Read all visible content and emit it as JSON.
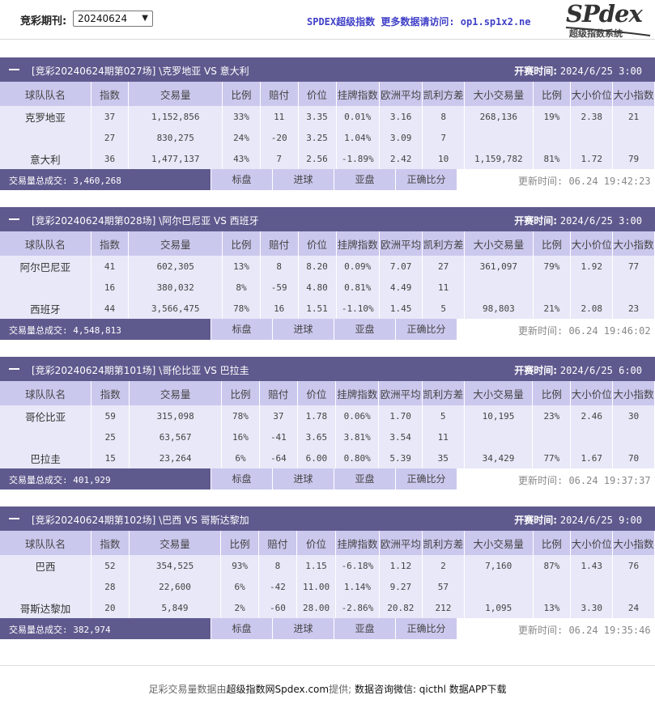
{
  "header": {
    "period_label": "竞彩期刊:",
    "period_value": "20240624",
    "banner": "SPDEX超级指数 更多数据请访问: op1.sp1x2.ne",
    "logo_text": "SPdex",
    "logo_sub": "超级指数系统"
  },
  "columns": [
    "球队队名",
    "指数",
    "交易量",
    "比例",
    "赔付",
    "价位",
    "挂牌指数",
    "欧洲平均",
    "凯利方差",
    "大小交易量",
    "比例",
    "大小价位",
    "大小指数"
  ],
  "buttons": [
    "标盘",
    "进球",
    "亚盘",
    "正确比分"
  ],
  "matches": [
    {
      "title": "[竞彩20240624期第027场] \\克罗地亚 VS 意大利",
      "start_label": "开赛时间:",
      "start_time": "2024/6/25 3:00",
      "rows": [
        {
          "team": "克罗地亚",
          "idx": "37",
          "vol": "1,152,856",
          "ratio": "33%",
          "pay": "11",
          "price": "3.35",
          "listed": "0.01%",
          "euro": "3.16",
          "kelly": "8",
          "ou_vol": "268,136",
          "ou_ratio": "19%",
          "ou_price": "2.38",
          "ou_idx": "21"
        },
        {
          "team": "",
          "idx": "27",
          "vol": "830,275",
          "ratio": "24%",
          "pay": "-20",
          "price": "3.25",
          "listed": "1.04%",
          "euro": "3.09",
          "kelly": "7",
          "ou_vol": "",
          "ou_ratio": "",
          "ou_price": "",
          "ou_idx": ""
        },
        {
          "team": "意大利",
          "idx": "36",
          "vol": "1,477,137",
          "ratio": "43%",
          "pay": "7",
          "price": "2.56",
          "listed": "-1.89%",
          "euro": "2.42",
          "kelly": "10",
          "ou_vol": "1,159,782",
          "ou_ratio": "81%",
          "ou_price": "1.72",
          "ou_idx": "79"
        }
      ],
      "total": "交易量总成交: 3,460,268",
      "updated": "更新时间: 06.24 19:42:23"
    },
    {
      "title": "[竞彩20240624期第028场] \\阿尔巴尼亚 VS 西班牙",
      "start_label": "开赛时间:",
      "start_time": "2024/6/25 3:00",
      "rows": [
        {
          "team": "阿尔巴尼亚",
          "idx": "41",
          "vol": "602,305",
          "ratio": "13%",
          "pay": "8",
          "price": "8.20",
          "listed": "0.09%",
          "euro": "7.07",
          "kelly": "27",
          "ou_vol": "361,097",
          "ou_ratio": "79%",
          "ou_price": "1.92",
          "ou_idx": "77"
        },
        {
          "team": "",
          "idx": "16",
          "vol": "380,032",
          "ratio": "8%",
          "pay": "-59",
          "price": "4.80",
          "listed": "0.81%",
          "euro": "4.49",
          "kelly": "11",
          "ou_vol": "",
          "ou_ratio": "",
          "ou_price": "",
          "ou_idx": ""
        },
        {
          "team": "西班牙",
          "idx": "44",
          "vol": "3,566,475",
          "ratio": "78%",
          "pay": "16",
          "price": "1.51",
          "listed": "-1.10%",
          "euro": "1.45",
          "kelly": "5",
          "ou_vol": "98,803",
          "ou_ratio": "21%",
          "ou_price": "2.08",
          "ou_idx": "23"
        }
      ],
      "total": "交易量总成交: 4,548,813",
      "updated": "更新时间: 06.24 19:46:02"
    },
    {
      "title": "[竞彩20240624期第101场] \\哥伦比亚 VS 巴拉圭",
      "start_label": "开赛时间:",
      "start_time": "2024/6/25 6:00",
      "rows": [
        {
          "team": "哥伦比亚",
          "idx": "59",
          "vol": "315,098",
          "ratio": "78%",
          "pay": "37",
          "price": "1.78",
          "listed": "0.06%",
          "euro": "1.70",
          "kelly": "5",
          "ou_vol": "10,195",
          "ou_ratio": "23%",
          "ou_price": "2.46",
          "ou_idx": "30"
        },
        {
          "team": "",
          "idx": "25",
          "vol": "63,567",
          "ratio": "16%",
          "pay": "-41",
          "price": "3.65",
          "listed": "3.81%",
          "euro": "3.54",
          "kelly": "11",
          "ou_vol": "",
          "ou_ratio": "",
          "ou_price": "",
          "ou_idx": ""
        },
        {
          "team": "巴拉圭",
          "idx": "15",
          "vol": "23,264",
          "ratio": "6%",
          "pay": "-64",
          "price": "6.00",
          "listed": "0.80%",
          "euro": "5.39",
          "kelly": "35",
          "ou_vol": "34,429",
          "ou_ratio": "77%",
          "ou_price": "1.67",
          "ou_idx": "70"
        }
      ],
      "total": "交易量总成交: 401,929",
      "updated": "更新时间: 06.24 19:37:37"
    },
    {
      "title": "[竞彩20240624期第102场] \\巴西 VS 哥斯达黎加",
      "start_label": "开赛时间:",
      "start_time": "2024/6/25 9:00",
      "rows": [
        {
          "team": "巴西",
          "idx": "52",
          "vol": "354,525",
          "ratio": "93%",
          "pay": "8",
          "price": "1.15",
          "listed": "-6.18%",
          "euro": "1.12",
          "kelly": "2",
          "ou_vol": "7,160",
          "ou_ratio": "87%",
          "ou_price": "1.43",
          "ou_idx": "76"
        },
        {
          "team": "",
          "idx": "28",
          "vol": "22,600",
          "ratio": "6%",
          "pay": "-42",
          "price": "11.00",
          "listed": "1.14%",
          "euro": "9.27",
          "kelly": "57",
          "ou_vol": "",
          "ou_ratio": "",
          "ou_price": "",
          "ou_idx": ""
        },
        {
          "team": "哥斯达黎加",
          "idx": "20",
          "vol": "5,849",
          "ratio": "2%",
          "pay": "-60",
          "price": "28.00",
          "listed": "-2.86%",
          "euro": "20.82",
          "kelly": "212",
          "ou_vol": "1,095",
          "ou_ratio": "13%",
          "ou_price": "3.30",
          "ou_idx": "24"
        }
      ],
      "total": "交易量总成交: 382,974",
      "updated": "更新时间: 06.24 19:35:46"
    }
  ],
  "footer": {
    "prefix": "足彩交易量数据由",
    "site": "超级指数网Spdex.com",
    "mid": "提供; ",
    "contact": "数据咨询微信: qicthl 数据APP下载"
  },
  "colors": {
    "header_bar": "#5e5a8e",
    "col_header": "#cbc8ee",
    "row_bg": "#e8e8f8",
    "banner": "#4040c8"
  }
}
